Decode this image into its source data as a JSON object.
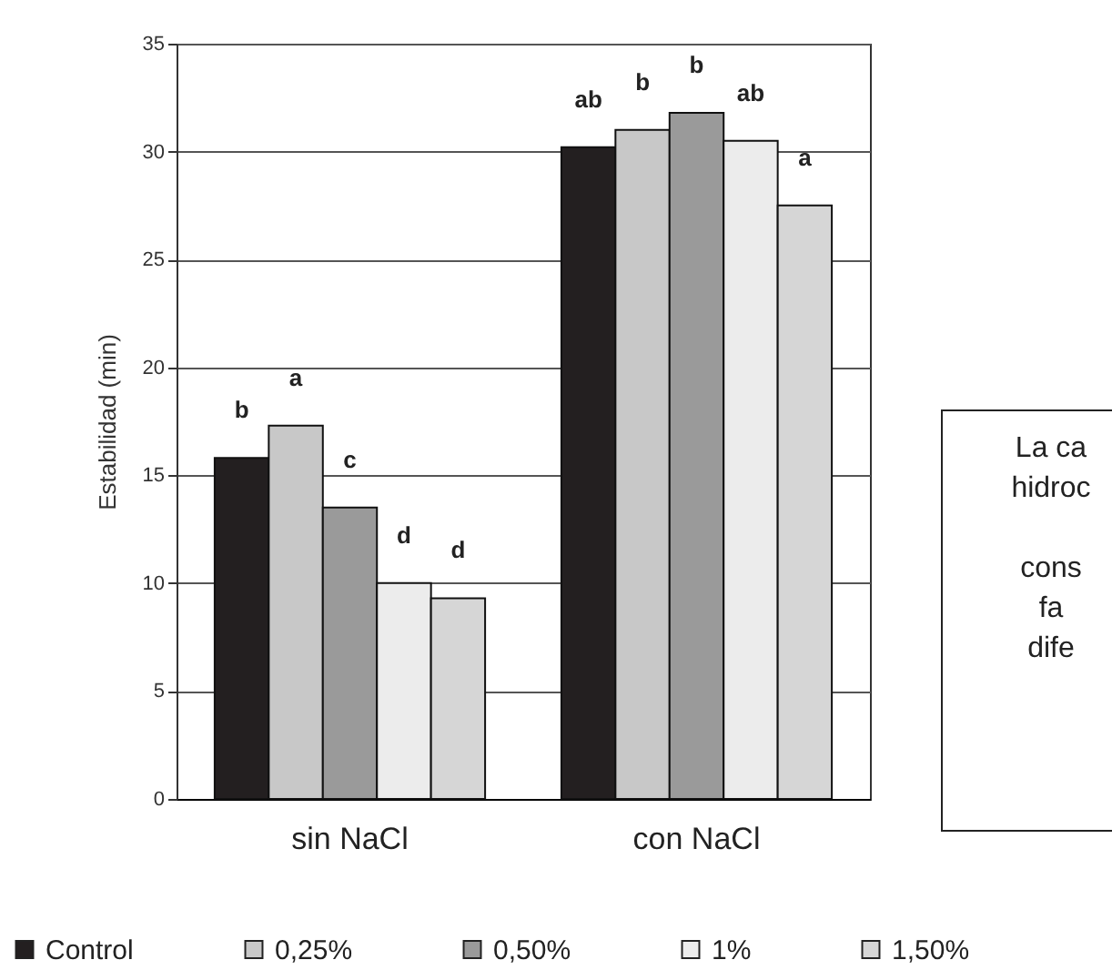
{
  "chart_data": {
    "type": "bar",
    "ylabel": "Estabilidad (min)",
    "categories": [
      "sin NaCl",
      "con NaCl"
    ],
    "series": [
      {
        "name": "Control",
        "color": "#231f20",
        "values": [
          15.8,
          30.2
        ],
        "value_labels": [
          "b",
          "ab"
        ]
      },
      {
        "name": "0,25%",
        "color": "#c8c8c8",
        "values": [
          17.3,
          31.0
        ],
        "value_labels": [
          "a",
          "b"
        ]
      },
      {
        "name": "0,50%",
        "color": "#9a9a9a",
        "values": [
          13.5,
          31.8
        ],
        "value_labels": [
          "c",
          "b"
        ]
      },
      {
        "name": "1%",
        "color": "#ececec",
        "values": [
          10.0,
          30.5
        ],
        "value_labels": [
          "d",
          "ab"
        ]
      },
      {
        "name": "1,50%",
        "color": "#d6d6d6",
        "values": [
          9.3,
          27.5
        ],
        "value_labels": [
          "d",
          "a"
        ]
      }
    ],
    "ylim": [
      0,
      35
    ],
    "yticks": [
      0,
      5,
      10,
      15,
      20,
      25,
      30,
      35
    ],
    "grid": "y",
    "legend": "bottom",
    "annotations": [
      "La ca\nhidroc\n\ncons\nfa\ndife"
    ]
  }
}
